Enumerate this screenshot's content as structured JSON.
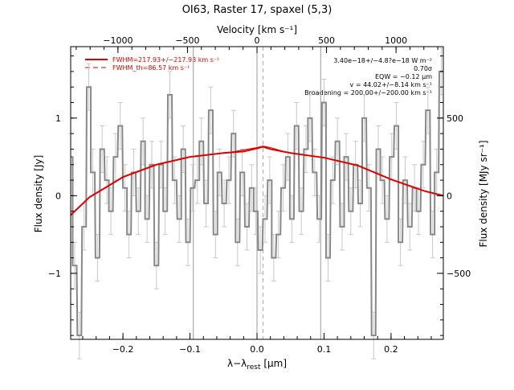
{
  "chart_data": {
    "type": "line",
    "title": "OI63, Raster 17, spaxel (5,3)",
    "xlabel": "λ−λ",
    "xlabel_sub": "rest",
    "xlabel_unit": " [μm]",
    "ylabel": "Flux density [Jy]",
    "ylabel_right": "Flux density [MJy sr⁻¹]",
    "top_label": "Velocity [km s⁻¹]",
    "xlim": [
      -0.278,
      0.278
    ],
    "ylim": [
      -1.85,
      1.92
    ],
    "top_xlim": [
      -1340,
      1340
    ],
    "right_ylim": [
      -925,
      960
    ],
    "x_ticks": [
      -0.2,
      -0.1,
      0.0,
      0.1,
      0.2
    ],
    "x_tick_labels": [
      "−0.2",
      "−0.1",
      "0.0",
      "0.1",
      "0.2"
    ],
    "y_ticks": [
      -1,
      0,
      1
    ],
    "y_tick_labels": [
      "−1",
      "0",
      "1"
    ],
    "top_ticks": [
      -1000,
      -500,
      0,
      500,
      1000
    ],
    "top_tick_labels": [
      "−1000",
      "−500",
      "0",
      "500",
      "1000"
    ],
    "right_ticks": [
      -500,
      0,
      500
    ],
    "right_tick_labels": [
      "−500",
      "0",
      "500"
    ],
    "vlines_solid": [
      -0.095,
      0.0,
      0.095
    ],
    "vline_dashed": 0.009,
    "legend": [
      {
        "label": "FWHM=217.93+/−217.93 km s⁻¹",
        "style": "solid",
        "color": "#dd0000"
      },
      {
        "label": "FWHM_th=86.57 km s⁻¹",
        "style": "dashed",
        "color": "#dd0000"
      }
    ],
    "annotations": [
      "3.40e−18+/−4.8?e−18 W m⁻²",
      "0.70σ",
      "EQW = −0.12 μm",
      "v = 44.02+/−8.14 km s⁻¹",
      "Broadening = 200.00+/−200.00 km s⁻¹"
    ],
    "series": [
      {
        "name": "data",
        "color": "#888888",
        "x": [
          -0.278,
          -0.272,
          -0.265,
          -0.258,
          -0.251,
          -0.245,
          -0.238,
          -0.231,
          -0.224,
          -0.218,
          -0.211,
          -0.204,
          -0.197,
          -0.191,
          -0.184,
          -0.177,
          -0.17,
          -0.164,
          -0.157,
          -0.15,
          -0.143,
          -0.137,
          -0.13,
          -0.123,
          -0.116,
          -0.11,
          -0.103,
          -0.096,
          -0.089,
          -0.083,
          -0.076,
          -0.069,
          -0.062,
          -0.056,
          -0.049,
          -0.042,
          -0.035,
          -0.029,
          -0.022,
          -0.015,
          -0.008,
          -0.002,
          0.005,
          0.012,
          0.019,
          0.025,
          0.032,
          0.039,
          0.046,
          0.052,
          0.059,
          0.066,
          0.073,
          0.079,
          0.086,
          0.093,
          0.1,
          0.106,
          0.113,
          0.12,
          0.127,
          0.133,
          0.14,
          0.147,
          0.154,
          0.16,
          0.167,
          0.174,
          0.181,
          0.187,
          0.194,
          0.201,
          0.208,
          0.214,
          0.221,
          0.228,
          0.235,
          0.241,
          0.248,
          0.255,
          0.262,
          0.268,
          0.275
        ],
        "values": [
          0.5,
          -0.9,
          -1.8,
          -0.4,
          1.4,
          0.3,
          -0.8,
          0.6,
          0.2,
          -0.2,
          0.5,
          0.9,
          0.1,
          -0.5,
          0.3,
          -0.2,
          0.7,
          -0.3,
          0.4,
          -0.9,
          0.4,
          -0.2,
          1.3,
          0.2,
          -0.3,
          0.6,
          -0.6,
          0.1,
          0.2,
          0.7,
          -0.1,
          1.1,
          -0.5,
          0.3,
          -0.1,
          0.2,
          0.8,
          -0.6,
          0.3,
          -0.4,
          0.1,
          -0.2,
          -0.7,
          -0.3,
          0.2,
          -0.8,
          -0.5,
          0.1,
          0.5,
          -0.3,
          0.9,
          -0.2,
          0.6,
          1.0,
          0.3,
          -0.3,
          1.2,
          -0.8,
          0.2,
          0.7,
          -0.4,
          0.5,
          -0.2,
          0.4,
          -0.1,
          1.0,
          0.1,
          -1.8,
          0.6,
          0.2,
          -0.3,
          0.5,
          0.9,
          -0.6,
          0.2,
          -0.4,
          0.1,
          -0.2,
          0.4,
          1.1,
          -0.5,
          0.3,
          1.6
        ],
        "error": 0.3
      },
      {
        "name": "fit",
        "color": "#dd0000",
        "x": [
          -0.278,
          -0.25,
          -0.2,
          -0.15,
          -0.1,
          -0.05,
          -0.02,
          0.0,
          0.009,
          0.02,
          0.05,
          0.1,
          0.15,
          0.2,
          0.25,
          0.278
        ],
        "values": [
          -0.25,
          -0.02,
          0.24,
          0.4,
          0.5,
          0.55,
          0.57,
          0.61,
          0.63,
          0.6,
          0.55,
          0.49,
          0.39,
          0.21,
          0.06,
          0.0
        ]
      }
    ]
  }
}
